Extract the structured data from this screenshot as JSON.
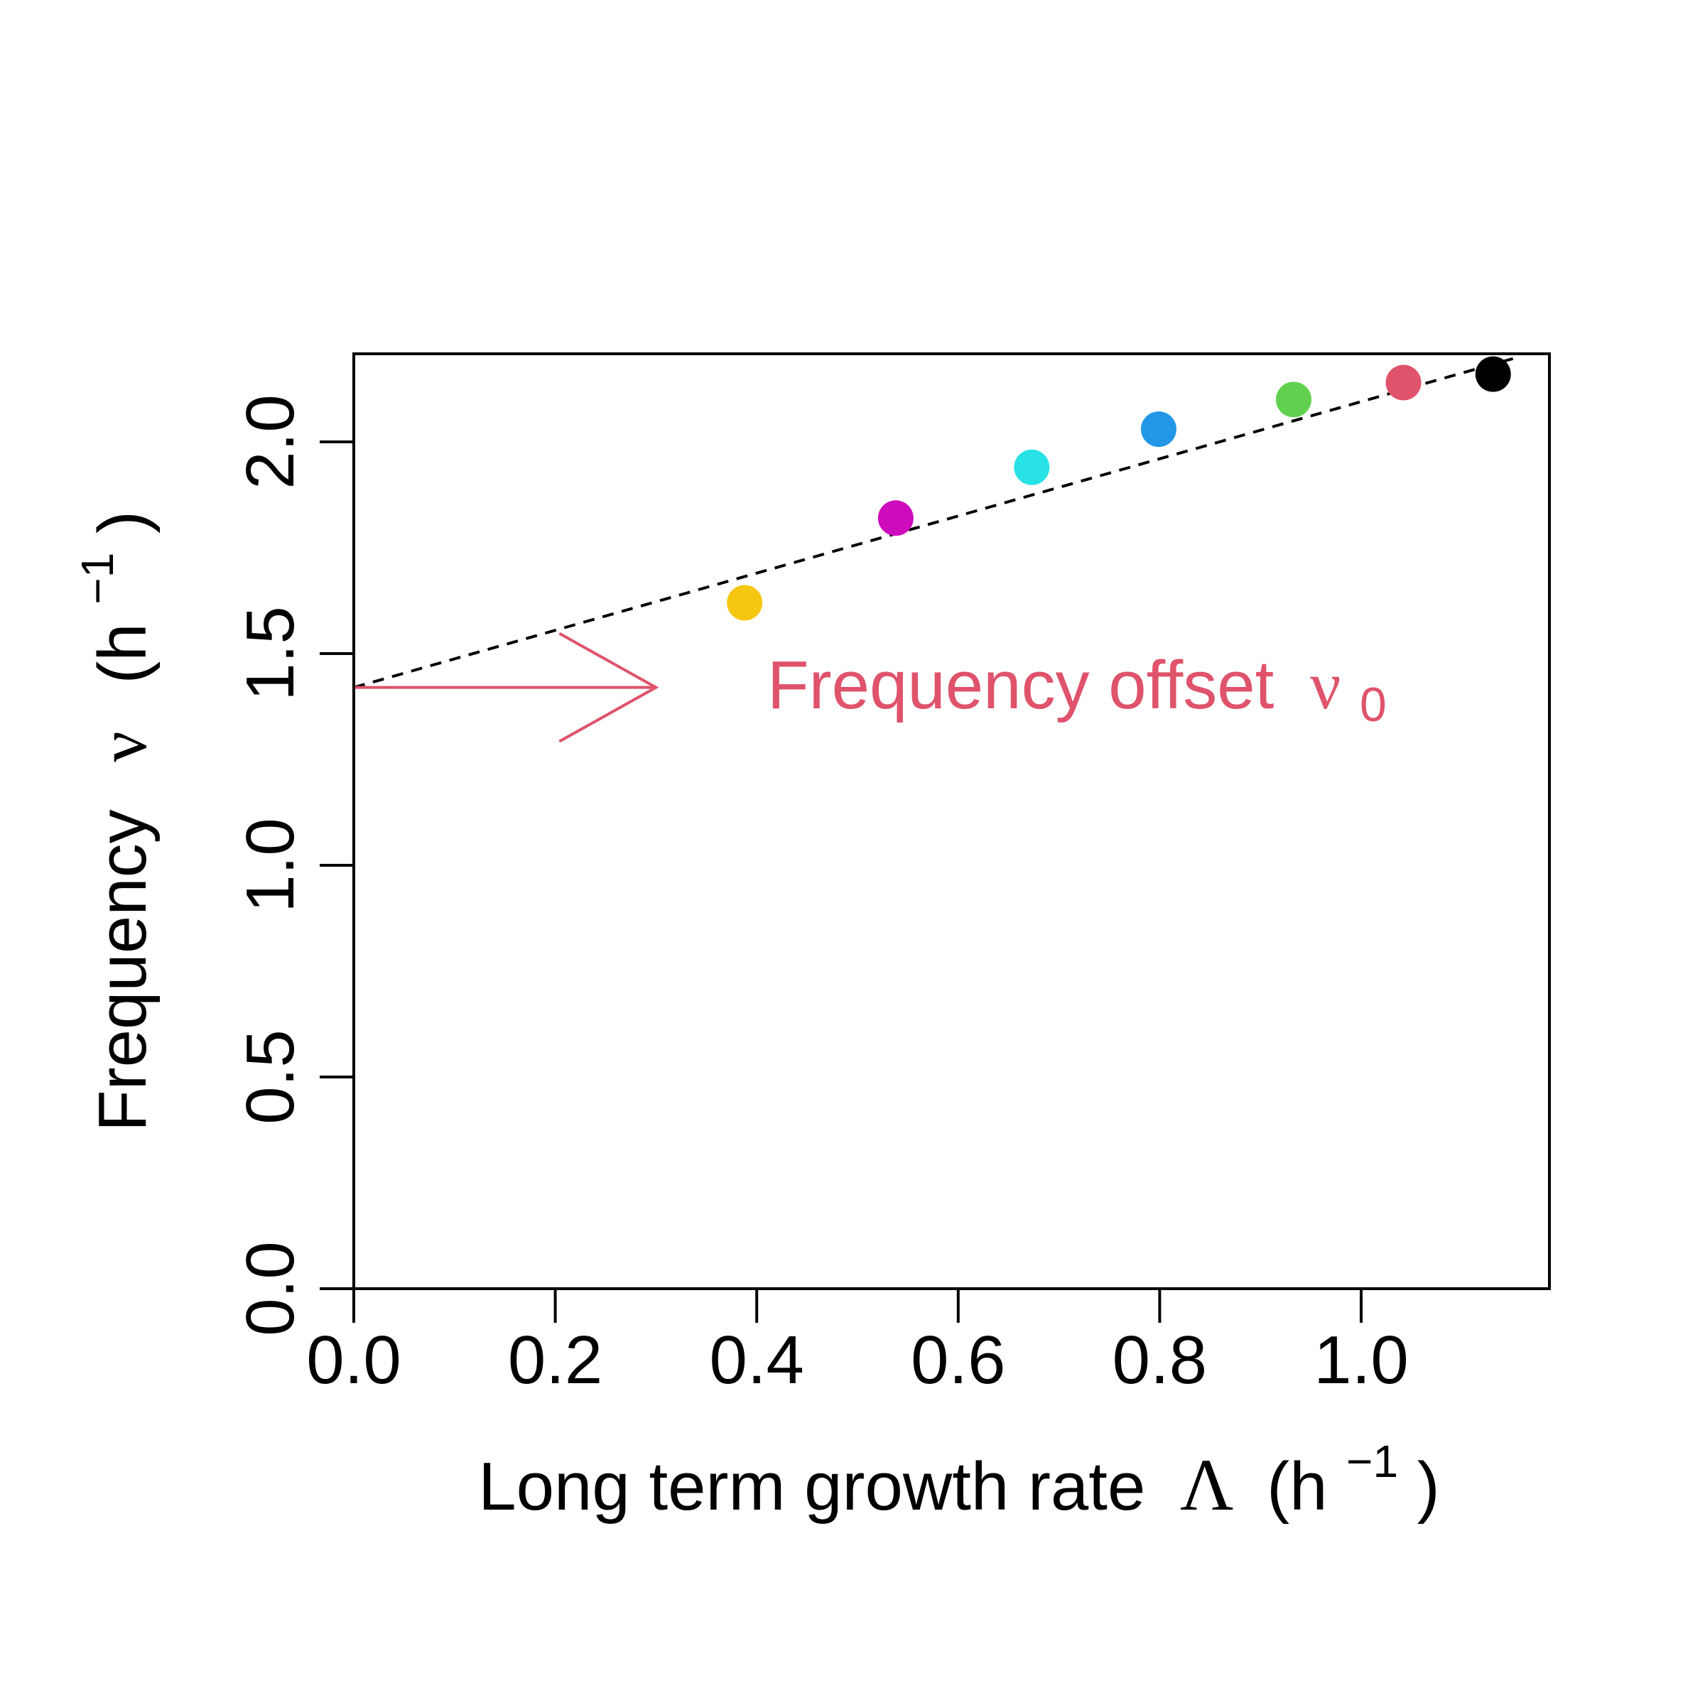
{
  "chart_data": {
    "type": "scatter",
    "title": "",
    "xlabel": {
      "text": "Long term growth rate",
      "symbol": "Λ",
      "unit_open": "(h",
      "unit_exp": "−1",
      "unit_close": ")"
    },
    "ylabel": {
      "text": "Frequency",
      "symbol": "ν",
      "unit_open": "(h",
      "unit_exp": "−1",
      "unit_close": ")"
    },
    "xlim": [
      0,
      1.19
    ],
    "ylim": [
      0,
      2.2
    ],
    "x_ticks": [
      0.0,
      0.2,
      0.4,
      0.6,
      0.8,
      1.0
    ],
    "x_tick_labels": [
      "0.0",
      "0.2",
      "0.4",
      "0.6",
      "0.8",
      "1.0"
    ],
    "y_ticks": [
      0.0,
      0.5,
      1.0,
      1.5,
      2.0
    ],
    "y_tick_labels": [
      "0.0",
      "0.5",
      "1.0",
      "1.5",
      "2.0"
    ],
    "grid": false,
    "points": [
      {
        "x": 0.388,
        "y": 1.62,
        "color": "#F5C710"
      },
      {
        "x": 0.538,
        "y": 1.82,
        "color": "#CD0BBC"
      },
      {
        "x": 0.673,
        "y": 1.94,
        "color": "#28E2E5"
      },
      {
        "x": 0.799,
        "y": 2.03,
        "color": "#2297E6"
      },
      {
        "x": 0.933,
        "y": 2.1,
        "color": "#61D04F"
      },
      {
        "x": 1.042,
        "y": 2.14,
        "color": "#DF536B"
      },
      {
        "x": 1.131,
        "y": 2.16,
        "color": "#000000"
      }
    ],
    "fit_line": {
      "intercept": 1.42,
      "slope": 0.675,
      "style": "dashed",
      "color": "#000000"
    },
    "annotation": {
      "text": "Frequency offset",
      "symbol": "ν",
      "subscript": "0",
      "color": "#DF536B",
      "arrow_from": [
        0.0,
        1.42
      ],
      "arrow_to": [
        0.3,
        1.42
      ]
    }
  }
}
